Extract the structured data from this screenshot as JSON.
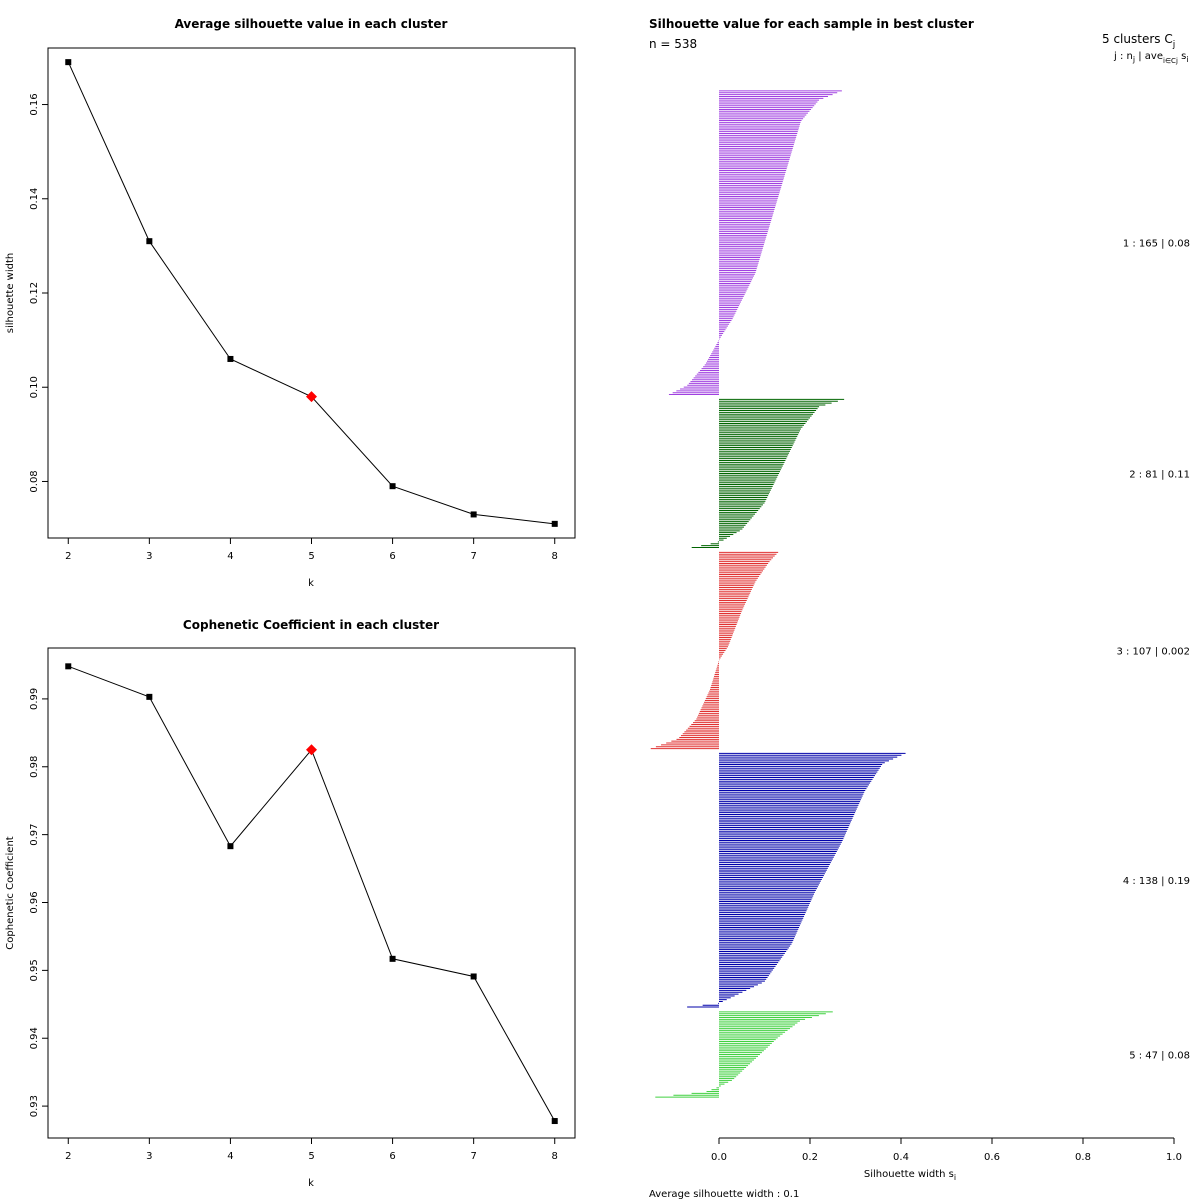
{
  "chart_data": [
    {
      "type": "line",
      "title": "Average silhouette value in each cluster",
      "xlabel": "k",
      "ylabel": "silhouette width",
      "x": [
        2,
        3,
        4,
        5,
        6,
        7,
        8
      ],
      "y": [
        0.169,
        0.131,
        0.106,
        0.098,
        0.079,
        0.073,
        0.071
      ],
      "highlight_x": 5,
      "highlight_color": "#ff0000",
      "xlim": [
        1.75,
        8.25
      ],
      "ylim": [
        0.068,
        0.172
      ],
      "xticks": [
        "2",
        "3",
        "4",
        "5",
        "6",
        "7",
        "8"
      ],
      "yticks": [
        0.08,
        0.1,
        0.12,
        0.14,
        0.16
      ],
      "ytick_labels": [
        "0.08",
        "0.10",
        "0.12",
        "0.14",
        "0.16"
      ]
    },
    {
      "type": "line",
      "title": "Cophenetic Coefficient in each cluster",
      "xlabel": "k",
      "ylabel": "Cophenetic Coefficient",
      "x": [
        2,
        3,
        4,
        5,
        6,
        7,
        8
      ],
      "y": [
        0.9948,
        0.9903,
        0.9683,
        0.9825,
        0.9517,
        0.9491,
        0.9278
      ],
      "highlight_x": 5,
      "highlight_color": "#ff0000",
      "xlim": [
        1.75,
        8.25
      ],
      "ylim": [
        0.9253,
        0.9975
      ],
      "xticks": [
        "2",
        "3",
        "4",
        "5",
        "6",
        "7",
        "8"
      ],
      "yticks": [
        0.93,
        0.94,
        0.95,
        0.96,
        0.97,
        0.98,
        0.99
      ],
      "ytick_labels": [
        "0.93",
        "0.94",
        "0.95",
        "0.96",
        "0.97",
        "0.98",
        "0.99"
      ]
    },
    {
      "type": "bar",
      "orientation": "horizontal",
      "title": "Silhouette value for each sample in best cluster",
      "n_label": "n = 538",
      "xlabel": "Silhouette width s",
      "xlabel_sub": "i",
      "xlim": [
        -0.15,
        1.0
      ],
      "xticks": [
        0.0,
        0.2,
        0.4,
        0.6,
        0.8,
        1.0
      ],
      "xtick_labels": [
        "0.0",
        "0.2",
        "0.4",
        "0.6",
        "0.8",
        "1.0"
      ],
      "legend_title": "5  clusters  C",
      "legend_title_sub": "j",
      "legend_header": "j :  n",
      "legend_header_sub": "j",
      "legend_header_rest": " | ave",
      "legend_header_sub2": "i∈Cj",
      "legend_header_tail": " s",
      "legend_header_sub3": "i",
      "average_label": "Average silhouette width :  0.1",
      "series": [
        {
          "cluster": 1,
          "n": 165,
          "avg": 0.08,
          "label": "1 :   165  |  0.08",
          "color": "#a040e0",
          "profile": [
            [
              0,
              0.27
            ],
            [
              0.03,
              0.22
            ],
            [
              0.1,
              0.18
            ],
            [
              0.25,
              0.15
            ],
            [
              0.45,
              0.11
            ],
            [
              0.6,
              0.08
            ],
            [
              0.75,
              0.03
            ],
            [
              0.82,
              0.0
            ],
            [
              0.9,
              -0.03
            ],
            [
              0.97,
              -0.07
            ],
            [
              1.0,
              -0.11
            ]
          ]
        },
        {
          "cluster": 2,
          "n": 81,
          "avg": 0.11,
          "label": "2 :   81  |  0.11",
          "color": "#006400",
          "profile": [
            [
              0,
              0.275
            ],
            [
              0.05,
              0.22
            ],
            [
              0.2,
              0.18
            ],
            [
              0.45,
              0.14
            ],
            [
              0.7,
              0.1
            ],
            [
              0.88,
              0.05
            ],
            [
              0.95,
              0.01
            ],
            [
              0.97,
              -0.01
            ],
            [
              1.0,
              -0.06
            ]
          ]
        },
        {
          "cluster": 3,
          "n": 107,
          "avg": 0.002,
          "label": "3 :   107  |  0.002",
          "color": "#e03030",
          "profile": [
            [
              0,
              0.13
            ],
            [
              0.05,
              0.11
            ],
            [
              0.15,
              0.08
            ],
            [
              0.3,
              0.05
            ],
            [
              0.48,
              0.02
            ],
            [
              0.55,
              0.0
            ],
            [
              0.7,
              -0.02
            ],
            [
              0.85,
              -0.05
            ],
            [
              0.95,
              -0.09
            ],
            [
              1.0,
              -0.15
            ]
          ]
        },
        {
          "cluster": 4,
          "n": 138,
          "avg": 0.19,
          "label": "4 :   138  |  0.19",
          "color": "#0000aa",
          "profile": [
            [
              0,
              0.41
            ],
            [
              0.04,
              0.36
            ],
            [
              0.15,
              0.32
            ],
            [
              0.35,
              0.27
            ],
            [
              0.55,
              0.21
            ],
            [
              0.75,
              0.16
            ],
            [
              0.9,
              0.1
            ],
            [
              0.96,
              0.03
            ],
            [
              0.985,
              0.0
            ],
            [
              1.0,
              -0.07
            ]
          ]
        },
        {
          "cluster": 5,
          "n": 47,
          "avg": 0.08,
          "label": "5 :   47  |  0.08",
          "color": "#40d040",
          "profile": [
            [
              0,
              0.25
            ],
            [
              0.1,
              0.18
            ],
            [
              0.3,
              0.13
            ],
            [
              0.6,
              0.07
            ],
            [
              0.8,
              0.03
            ],
            [
              0.88,
              0.0
            ],
            [
              0.94,
              -0.03
            ],
            [
              1.0,
              -0.14
            ]
          ]
        }
      ]
    }
  ]
}
